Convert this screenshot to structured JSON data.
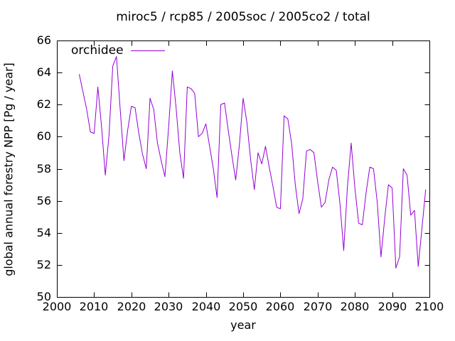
{
  "chart_data": {
    "type": "line",
    "title": "miroc5 / rcp85 / 2005soc / 2005co2 / total",
    "xlabel": "year",
    "ylabel": "global annual forestry NPP [Pg / year]",
    "xlim": [
      2000,
      2100
    ],
    "ylim": [
      50,
      66
    ],
    "xticks": [
      2000,
      2010,
      2020,
      2030,
      2040,
      2050,
      2060,
      2070,
      2080,
      2090,
      2100
    ],
    "yticks": [
      50,
      52,
      54,
      56,
      58,
      60,
      62,
      64,
      66
    ],
    "grid": false,
    "legend_position": "inside-top-left",
    "background_color": "#ffffff",
    "text_color": "#000000",
    "series": [
      {
        "name": "orchidee",
        "color": "#9400d3",
        "x": [
          2006,
          2007,
          2008,
          2009,
          2010,
          2011,
          2012,
          2013,
          2014,
          2015,
          2016,
          2017,
          2018,
          2019,
          2020,
          2021,
          2022,
          2023,
          2024,
          2025,
          2026,
          2027,
          2028,
          2029,
          2030,
          2031,
          2032,
          2033,
          2034,
          2035,
          2036,
          2037,
          2038,
          2039,
          2040,
          2041,
          2042,
          2043,
          2044,
          2045,
          2046,
          2047,
          2048,
          2049,
          2050,
          2051,
          2052,
          2053,
          2054,
          2055,
          2056,
          2057,
          2058,
          2059,
          2060,
          2061,
          2062,
          2063,
          2064,
          2065,
          2066,
          2067,
          2068,
          2069,
          2070,
          2071,
          2072,
          2073,
          2074,
          2075,
          2076,
          2077,
          2078,
          2079,
          2080,
          2081,
          2082,
          2083,
          2084,
          2085,
          2086,
          2087,
          2088,
          2089,
          2090,
          2091,
          2092,
          2093,
          2094,
          2095,
          2096,
          2097,
          2098,
          2099
        ],
        "values": [
          63.9,
          62.8,
          61.7,
          60.3,
          60.2,
          63.1,
          60.6,
          57.6,
          60.1,
          64.4,
          65.0,
          61.7,
          58.5,
          60.4,
          61.9,
          61.8,
          60.2,
          58.9,
          58.0,
          62.4,
          61.7,
          59.6,
          58.5,
          57.5,
          60.6,
          64.1,
          61.8,
          59.0,
          57.4,
          63.1,
          63.0,
          62.7,
          60.0,
          60.2,
          60.8,
          59.4,
          58.0,
          56.2,
          62.0,
          62.1,
          60.4,
          58.8,
          57.3,
          59.5,
          62.4,
          60.9,
          58.6,
          56.7,
          59.0,
          58.3,
          59.4,
          58.1,
          56.9,
          55.6,
          55.5,
          61.3,
          61.1,
          59.6,
          57.0,
          55.2,
          56.1,
          59.1,
          59.2,
          59.0,
          57.2,
          55.6,
          55.9,
          57.3,
          58.1,
          57.9,
          55.8,
          52.9,
          56.9,
          59.6,
          56.8,
          54.6,
          54.5,
          56.5,
          58.1,
          58.0,
          55.9,
          52.5,
          54.9,
          57.0,
          56.8,
          51.8,
          52.5,
          58.0,
          57.6,
          55.1,
          55.4,
          51.9,
          54.3,
          56.7
        ]
      }
    ]
  }
}
